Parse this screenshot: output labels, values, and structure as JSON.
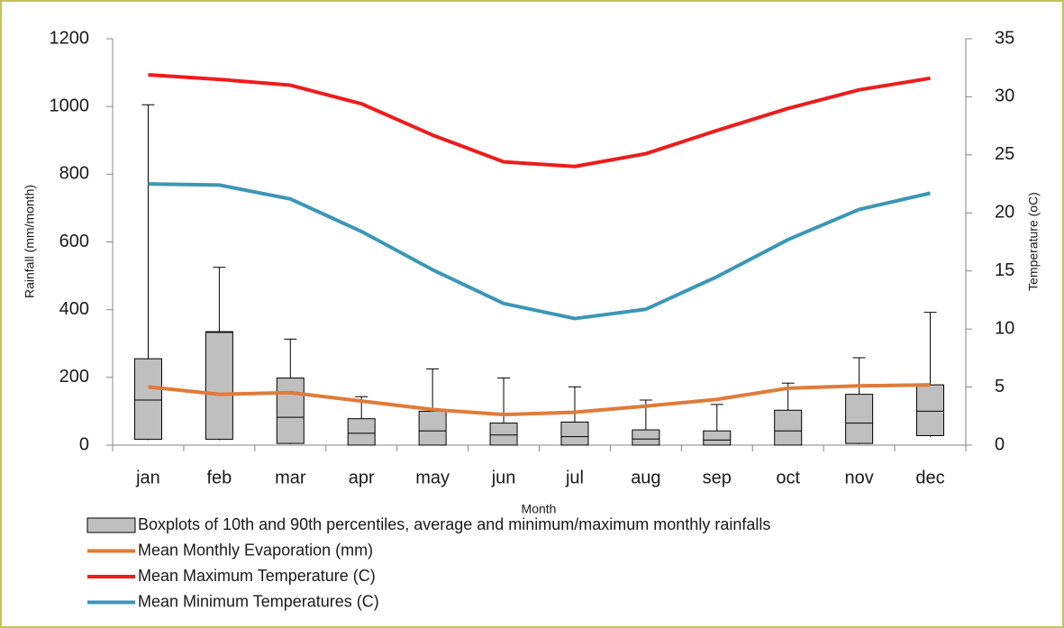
{
  "chart_data": {
    "type": "box-line-combo",
    "x_label": "Month",
    "y_label": "Rainfall (mm/month)",
    "y2_label": "Temperature (oC)",
    "categories": [
      "jan",
      "feb",
      "mar",
      "apr",
      "may",
      "jun",
      "jul",
      "aug",
      "sep",
      "oct",
      "nov",
      "dec"
    ],
    "ylim": [
      0,
      1200
    ],
    "yticks": [
      0,
      200,
      400,
      600,
      800,
      1000,
      1200
    ],
    "y2lim": [
      0,
      35
    ],
    "y2ticks": [
      0,
      5,
      10,
      15,
      20,
      25,
      30,
      35
    ],
    "boxes": {
      "name": "Boxplots of 10th and 90th percentiles, average and minimum/maximum monthly rainfalls",
      "color": "#bfbfbf",
      "min": [
        15,
        15,
        3,
        0,
        0,
        0,
        0,
        0,
        0,
        0,
        3,
        25
      ],
      "p10": [
        17,
        17,
        5,
        0,
        0,
        0,
        0,
        0,
        0,
        0,
        5,
        28
      ],
      "mean": [
        133,
        333,
        82,
        35,
        42,
        30,
        25,
        18,
        15,
        42,
        65,
        100
      ],
      "p90": [
        255,
        335,
        198,
        78,
        100,
        65,
        68,
        45,
        42,
        103,
        150,
        178
      ],
      "max": [
        1005,
        525,
        313,
        143,
        225,
        198,
        172,
        133,
        120,
        183,
        258,
        392
      ]
    },
    "series": [
      {
        "name": "Mean Monthly Evaporation (mm)",
        "color": "#e07b39",
        "axis": "y",
        "values": [
          172,
          150,
          155,
          130,
          105,
          90,
          97,
          115,
          135,
          168,
          175,
          178
        ]
      },
      {
        "name": "Mean Maximum Temperature (C)",
        "color": "#ee1c1c",
        "axis": "y2",
        "values": [
          31.9,
          31.5,
          31.0,
          29.4,
          26.7,
          24.4,
          24.0,
          25.1,
          27.1,
          29.0,
          30.6,
          31.6
        ]
      },
      {
        "name": "Mean Minimum Temperatures (C)",
        "color": "#3b97b5",
        "axis": "y2",
        "values": [
          22.5,
          22.4,
          21.2,
          18.4,
          15.1,
          12.2,
          10.9,
          11.7,
          14.5,
          17.7,
          20.3,
          21.7
        ]
      }
    ]
  }
}
